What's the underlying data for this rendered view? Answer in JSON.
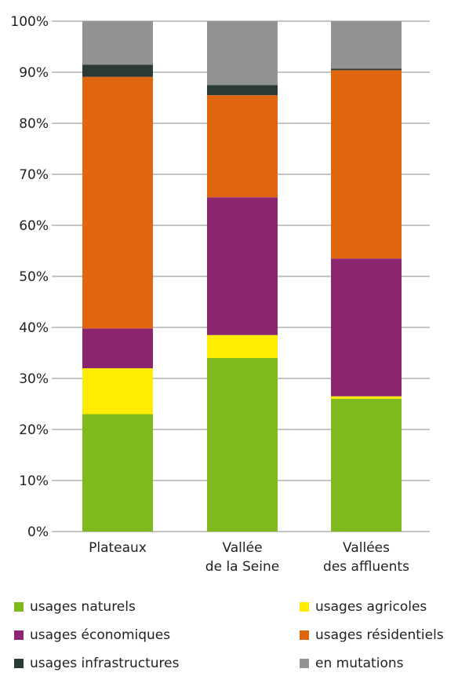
{
  "chart_data": {
    "type": "bar",
    "stacked": true,
    "categories": [
      [
        "Plateaux"
      ],
      [
        "Vallée",
        "de la Seine"
      ],
      [
        "Vallées",
        "des affluents"
      ]
    ],
    "series": [
      {
        "name": "usages naturels",
        "color": "#7fb91e",
        "values": [
          23,
          34,
          26
        ]
      },
      {
        "name": "usages agricoles",
        "color": "#ffec00",
        "values": [
          9,
          4.5,
          0.5
        ]
      },
      {
        "name": "usages économiques",
        "color": "#8c2670",
        "values": [
          7.8,
          27,
          27
        ]
      },
      {
        "name": "usages résidentiels",
        "color": "#e06710",
        "values": [
          49.3,
          20,
          36.9
        ]
      },
      {
        "name": "usages infrastructures",
        "color": "#2a3a36",
        "values": [
          2.4,
          2,
          0.3
        ]
      },
      {
        "name": "en mutations",
        "color": "#939393",
        "values": [
          8.5,
          12.5,
          9.3
        ]
      }
    ],
    "y_ticks": [
      "0%",
      "10%",
      "20%",
      "30%",
      "40%",
      "50%",
      "60%",
      "70%",
      "80%",
      "90%",
      "100%"
    ],
    "ylim": [
      0,
      100
    ],
    "grid": true,
    "legend_position": "bottom"
  }
}
